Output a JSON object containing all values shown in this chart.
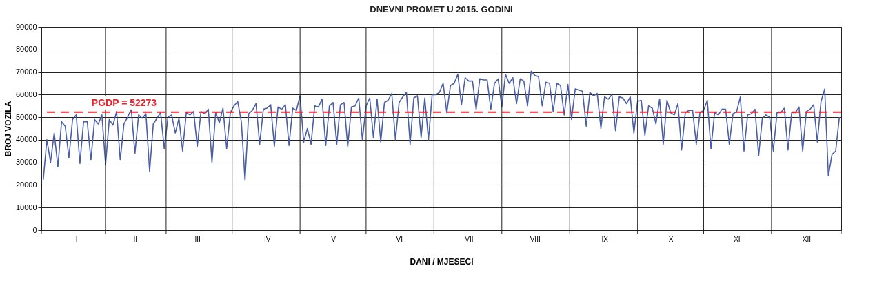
{
  "chart_data": {
    "type": "line",
    "title": "DNEVNI PROMET U 2015. GODINI",
    "xlabel": "DANI / MJESECI",
    "ylabel": "BROJ VOZILA",
    "categories": [
      null,
      null,
      null,
      null,
      null,
      null,
      null,
      null,
      null,
      "I",
      null,
      null,
      null,
      null,
      null,
      null,
      null,
      null,
      null,
      null,
      null,
      null,
      null,
      null,
      null,
      "II",
      null,
      null,
      null,
      null,
      null,
      null,
      null,
      null,
      null,
      null,
      null,
      null,
      null,
      null,
      null,
      null,
      "III",
      null,
      null,
      null,
      null,
      null,
      null,
      null,
      null,
      null,
      null,
      null,
      null,
      null,
      null,
      null,
      null,
      null,
      null,
      "IV",
      null,
      null,
      null,
      null,
      null,
      null,
      null,
      null,
      null,
      null,
      null,
      null,
      null,
      null,
      null,
      null,
      null,
      "V",
      null,
      null,
      null,
      null,
      null,
      null,
      null,
      null,
      null,
      null,
      null,
      null,
      null,
      null,
      null,
      null,
      null,
      "VI",
      null,
      null,
      null,
      null,
      null,
      null,
      null,
      null,
      null,
      null,
      null,
      null,
      null,
      null,
      null,
      null,
      null,
      null,
      "VII",
      null,
      null,
      null,
      null,
      null,
      null,
      null,
      null,
      null,
      null,
      null,
      null,
      null,
      null,
      null,
      null,
      null,
      "VIII",
      null,
      null,
      null,
      null,
      null,
      null,
      null,
      null,
      null,
      null,
      null,
      null,
      null,
      null,
      null,
      null,
      null,
      null,
      "IX",
      null,
      null,
      null,
      null,
      null,
      null,
      null,
      null,
      null,
      null,
      null,
      null,
      null,
      null,
      null,
      null,
      null,
      "X",
      null,
      null,
      null,
      null,
      null,
      null,
      null,
      null,
      null,
      null,
      null,
      null,
      null,
      null,
      null,
      null,
      null,
      "XI",
      null,
      null,
      null,
      null,
      null,
      null,
      null,
      null,
      null,
      null,
      null,
      null,
      null,
      null,
      null,
      null,
      null,
      null,
      "XII",
      null,
      null,
      null,
      null,
      null,
      null,
      null,
      null,
      null
    ],
    "series": [
      {
        "color": "#4a5ea8",
        "values": [
          22000,
          40000,
          30000,
          43000,
          28000,
          48000,
          46000,
          32000,
          49000,
          51000,
          29500,
          48000,
          48000,
          31000,
          49000,
          47000,
          51000,
          29000,
          49000,
          46500,
          52500,
          31000,
          47000,
          50000,
          53500,
          34000,
          51000,
          49500,
          51500,
          26000,
          47000,
          49500,
          52000,
          36000,
          50000,
          51000,
          43000,
          49500,
          35000,
          52000,
          51000,
          52500,
          37000,
          52500,
          51500,
          53500,
          30000,
          52000,
          47500,
          54000,
          36000,
          52000,
          55000,
          57000,
          48000,
          22000,
          51500,
          53000,
          56000,
          38000,
          53500,
          54000,
          55500,
          37000,
          54500,
          53500,
          55500,
          37500,
          54000,
          53000,
          59500,
          39000,
          45000,
          38000,
          55000,
          54500,
          58000,
          37500,
          55000,
          56500,
          38000,
          55500,
          56500,
          37000,
          54500,
          55000,
          58500,
          40000,
          55000,
          58500,
          41000,
          58000,
          39000,
          56500,
          57500,
          60500,
          40000,
          56500,
          59000,
          61000,
          38000,
          58500,
          59500,
          41000,
          58500,
          40000,
          60000,
          60000,
          61000,
          65000,
          52000,
          64000,
          65000,
          69000,
          55500,
          67500,
          66000,
          66000,
          53500,
          67000,
          66500,
          66500,
          53500,
          65000,
          67000,
          54500,
          69000,
          65000,
          67500,
          56000,
          67000,
          66000,
          55000,
          70400,
          68500,
          68000,
          55000,
          65500,
          65000,
          52500,
          65000,
          64000,
          51000,
          64500,
          49000,
          62500,
          62000,
          61500,
          46000,
          61000,
          59500,
          60500,
          45000,
          59000,
          58000,
          60000,
          44000,
          59000,
          58500,
          56000,
          59000,
          43000,
          57000,
          57500,
          42000,
          55000,
          54000,
          47000,
          58000,
          38000,
          57500,
          52000,
          51000,
          56000,
          35500,
          52000,
          53000,
          53000,
          38000,
          52000,
          53000,
          57500,
          36000,
          52000,
          51000,
          53500,
          53500,
          38000,
          51500,
          52500,
          59000,
          35000,
          51000,
          51500,
          53500,
          33000,
          49500,
          51000,
          50000,
          35000,
          52000,
          52000,
          54000,
          35500,
          52000,
          52000,
          54500,
          35000,
          52500,
          53500,
          55500,
          39000,
          57000,
          62500,
          24000,
          33500,
          35000,
          50000
        ]
      }
    ],
    "ylim": [
      0,
      90000
    ],
    "yticks": [
      0,
      10000,
      20000,
      30000,
      40000,
      50000,
      60000,
      70000,
      80000,
      90000
    ],
    "grid": true,
    "line_style": "solid",
    "marker": "none",
    "ref_lines": [
      {
        "axis": "y",
        "value": 52273,
        "label": "PGDP = 52273",
        "color": "#e8222a",
        "line_style": "dashed"
      }
    ]
  }
}
